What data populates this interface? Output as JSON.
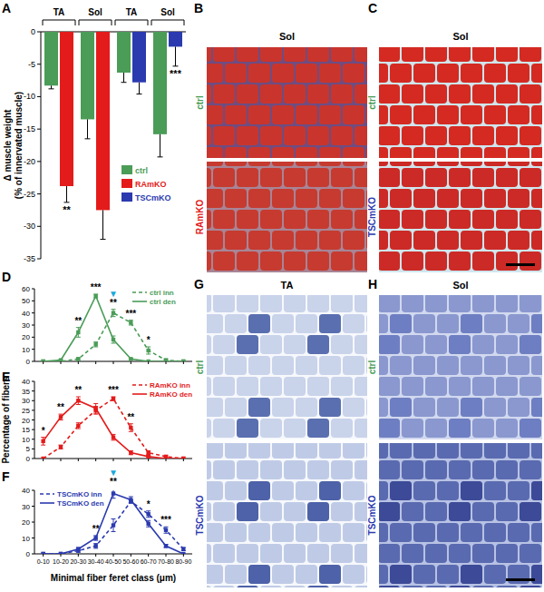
{
  "chart_data": [
    {
      "type": "bar",
      "panel": "A",
      "y_label": [
        "Δ muscle weight",
        "(% of innervated muscle)"
      ],
      "categories": [
        "TA",
        "Sol",
        "TA",
        "Sol"
      ],
      "series": [
        {
          "name": "ctrl",
          "color": "#4a9c57",
          "values": [
            -8.3,
            -13.5,
            -6.3,
            -15.8
          ],
          "errors": [
            0.5,
            3,
            1.5,
            3.5
          ]
        },
        {
          "name": "RAmKO",
          "color": "#e41b1b",
          "values": [
            -23.8,
            -27.5,
            null,
            null
          ],
          "errors": [
            2.5,
            4.5,
            null,
            null
          ]
        },
        {
          "name": "TSCmKO",
          "color": "#2b3aaf",
          "values": [
            null,
            null,
            -7.8,
            -2.3
          ],
          "errors": [
            null,
            null,
            1.8,
            3
          ]
        }
      ],
      "ylim": [
        -35,
        0
      ],
      "yticks": [
        0,
        -5,
        -10,
        -15,
        -20,
        -25,
        -30,
        -35
      ],
      "legend": "right",
      "annotations": [
        {
          "text": "**",
          "series": 1,
          "index": 0
        },
        {
          "text": "***",
          "series": 2,
          "index": 3
        }
      ]
    },
    {
      "type": "line",
      "panel": "D",
      "categories": [
        null,
        null,
        null,
        null,
        null,
        null,
        null,
        null,
        null
      ],
      "tick_labels": "y",
      "series": [
        {
          "name": "ctrl inn",
          "color": "#4a9c57",
          "line_style": "dashed",
          "marker": "square",
          "values": [
            0,
            0,
            2,
            14,
            40,
            32,
            9,
            1,
            0
          ],
          "errors": [
            0,
            0,
            1,
            2,
            3,
            2,
            3,
            1,
            0
          ]
        },
        {
          "name": "ctrl den",
          "color": "#4a9c57",
          "line_style": "solid",
          "marker": "square",
          "values": [
            0,
            1,
            24,
            54,
            18,
            2,
            0,
            0,
            0
          ],
          "errors": [
            0,
            0.5,
            4,
            1.5,
            3,
            0.5,
            0,
            0,
            0
          ]
        }
      ],
      "ylim": [
        0,
        60
      ],
      "yticks": [
        0,
        10,
        20,
        30,
        40,
        50,
        60
      ],
      "legend": "upper right",
      "annotations": [
        {
          "text": "**",
          "index": 2
        },
        {
          "text": "***",
          "index": 3
        },
        {
          "text": "**",
          "index": 4
        },
        {
          "text": "▼",
          "index": 4,
          "color": "#1aa7dc"
        },
        {
          "text": "***",
          "index": 5
        },
        {
          "text": "*",
          "index": 6
        }
      ]
    },
    {
      "type": "line",
      "panel": "E",
      "y_label": "Percentage of fibers",
      "categories": [
        null,
        null,
        null,
        null,
        null,
        null,
        null,
        null,
        null
      ],
      "tick_labels": "y",
      "series": [
        {
          "name": "RAmKO inn",
          "color": "#e41b1b",
          "line_style": "dashed",
          "marker": "square",
          "values": [
            0,
            6,
            17,
            25,
            31,
            16,
            3,
            1,
            0
          ],
          "errors": [
            0,
            1,
            1.5,
            2,
            1,
            2,
            1,
            0.5,
            0
          ]
        },
        {
          "name": "RAmKO den",
          "color": "#e41b1b",
          "line_style": "solid",
          "marker": "square",
          "values": [
            9,
            21.5,
            30,
            26,
            11,
            3,
            1,
            0,
            0
          ],
          "errors": [
            2,
            1.5,
            2,
            2.5,
            1.5,
            1,
            0.5,
            0,
            0
          ]
        }
      ],
      "ylim": [
        0,
        40
      ],
      "yticks": [
        0,
        5,
        10,
        15,
        20,
        25,
        30,
        35,
        40
      ],
      "legend": "upper right",
      "annotations": [
        {
          "text": "*",
          "index": 0
        },
        {
          "text": "**",
          "index": 1
        },
        {
          "text": "**",
          "index": 2
        },
        {
          "text": "***",
          "index": 4
        },
        {
          "text": "**",
          "index": 5
        }
      ]
    },
    {
      "type": "line",
      "panel": "F",
      "x_label": "Minimal fiber feret class (μm)",
      "categories": [
        "0-10",
        "10-20",
        "20-30",
        "30-40",
        "40-50",
        "50-60",
        "60-70",
        "70-80",
        "80-90"
      ],
      "series": [
        {
          "name": "TSCmKO inn",
          "color": "#2b3aaf",
          "line_style": "dashed",
          "marker": "square",
          "values": [
            0,
            0,
            2,
            5,
            18,
            33,
            25,
            15,
            3
          ],
          "errors": [
            0,
            0,
            1,
            1.5,
            4,
            1,
            2,
            2,
            1
          ]
        },
        {
          "name": "TSCmKO den",
          "color": "#2b3aaf",
          "line_style": "solid",
          "marker": "square",
          "values": [
            0,
            0,
            3,
            10,
            38,
            34,
            19,
            5,
            0
          ],
          "errors": [
            0,
            0,
            1,
            1.5,
            3,
            2,
            2,
            1,
            0
          ]
        }
      ],
      "ylim": [
        0,
        40
      ],
      "yticks": [
        0,
        10,
        20,
        30,
        40
      ],
      "legend": "upper left",
      "annotations": [
        {
          "text": "**",
          "index": 3
        },
        {
          "text": "**",
          "index": 4
        },
        {
          "text": "▼",
          "index": 4,
          "color": "#1aa7dc"
        },
        {
          "text": "*",
          "index": 6
        },
        {
          "text": "***",
          "index": 7
        }
      ]
    }
  ],
  "images": [
    {
      "panel": "B",
      "title": "Sol",
      "labels": [
        "ctrl",
        "RAmKO"
      ],
      "colors": [
        "#4a9c57",
        "#e41b1b"
      ]
    },
    {
      "panel": "C",
      "title": "Sol",
      "labels": [
        "ctrl",
        "TSCmKO"
      ],
      "colors": [
        "#4a9c57",
        "#2b3aaf"
      ]
    },
    {
      "panel": "G",
      "title": "TA",
      "labels": [
        "ctrl",
        "TSCmKO"
      ],
      "colors": [
        "#4a9c57",
        "#2b3aaf"
      ]
    },
    {
      "panel": "H",
      "title": "Sol",
      "labels": [
        "ctrl",
        "TSCmKO"
      ],
      "colors": [
        "#4a9c57",
        "#2b3aaf"
      ]
    }
  ]
}
